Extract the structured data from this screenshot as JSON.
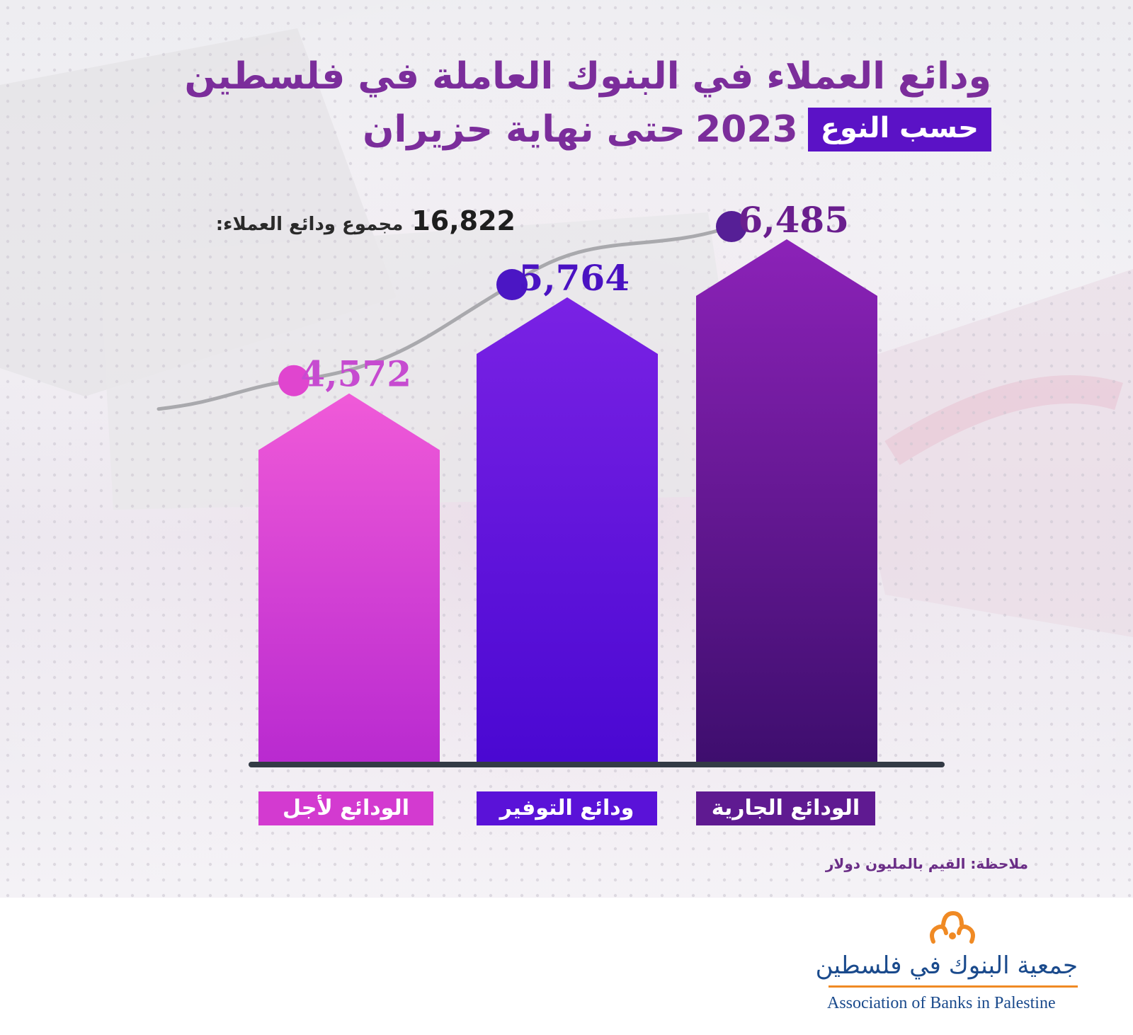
{
  "header": {
    "title_line1": "ودائع العملاء في البنوك العاملة في فلسطين",
    "title_line2_text": "حتى نهاية حزيران",
    "title_line2_year": "2023",
    "title_badge": "حسب النوع"
  },
  "total": {
    "label": "مجموع ودائع العملاء:",
    "value": "16,822"
  },
  "note": "ملاحظة: القيم بالمليون دولار",
  "colors": {
    "title": "#7b2d9b",
    "badge": "#5b12c6",
    "bar_pink": "#d33ad0",
    "bar_violet": "#5a12d8",
    "bar_purple": "#5f1a91",
    "trend_line": "#a9a9ad",
    "baseline": "#333a45"
  },
  "chart_data": {
    "type": "bar",
    "categories": [
      "الودائع لأجل",
      "ودائع التوفير",
      "الودائع الجارية"
    ],
    "values": [
      4572,
      5764,
      6485
    ],
    "value_labels": [
      "4,572",
      "5,764",
      "6,485"
    ],
    "unit": "مليون دولار",
    "trend_line": true,
    "grid": false,
    "legend": "none"
  },
  "logo": {
    "arabic": "جمعية البنوك في فلسطين",
    "english": "Association of Banks in Palestine"
  }
}
